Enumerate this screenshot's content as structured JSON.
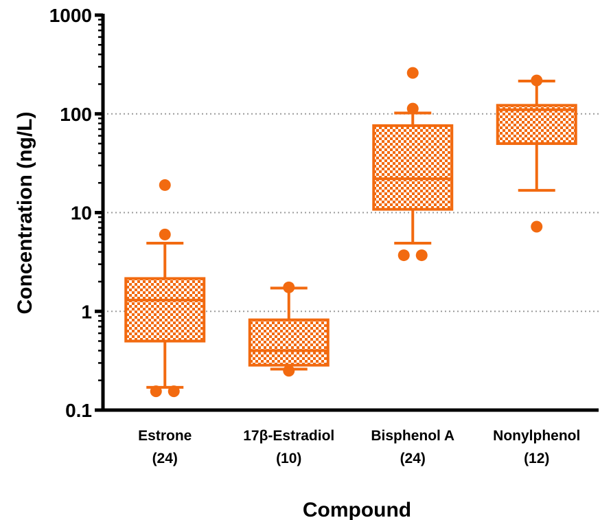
{
  "chart_data": {
    "type": "box",
    "title": "",
    "xlabel": "Compound",
    "ylabel": "Concentration (ng/L)",
    "yscale": "log",
    "ylim": [
      0.1,
      1000
    ],
    "yticks": [
      {
        "value": 0.1,
        "label": "0.1"
      },
      {
        "value": 1,
        "label": "1"
      },
      {
        "value": 10,
        "label": "10"
      },
      {
        "value": 100,
        "label": "100"
      },
      {
        "value": 1000,
        "label": "1000"
      }
    ],
    "grid": "horizontal dotted at 1, 10, 100",
    "color": "#F26A10",
    "boxes": [
      {
        "name": "Estrone",
        "n_label": "(24)",
        "whisker_low": 0.17,
        "q1": 0.5,
        "median": 1.3,
        "q3": 2.15,
        "whisker_high": 4.9,
        "outliers": [
          0.155,
          0.155,
          6.0,
          19.0
        ]
      },
      {
        "name": "17β-Estradiol",
        "n_label": "(10)",
        "whisker_low": 0.26,
        "q1": 0.285,
        "median": 0.4,
        "q3": 0.82,
        "whisker_high": 1.72,
        "outliers": [
          0.25,
          1.75
        ]
      },
      {
        "name": "Bisphenol A",
        "n_label": "(24)",
        "whisker_low": 4.9,
        "q1": 10.8,
        "median": 22.0,
        "q3": 76.0,
        "whisker_high": 102.0,
        "outliers": [
          3.7,
          3.7,
          113.0,
          260.0
        ]
      },
      {
        "name": "Nonylphenol",
        "n_label": "(12)",
        "whisker_low": 16.8,
        "q1": 50.0,
        "median": 110.0,
        "q3": 122.0,
        "whisker_high": 215.0,
        "outliers": [
          7.2,
          218.0
        ]
      }
    ]
  }
}
